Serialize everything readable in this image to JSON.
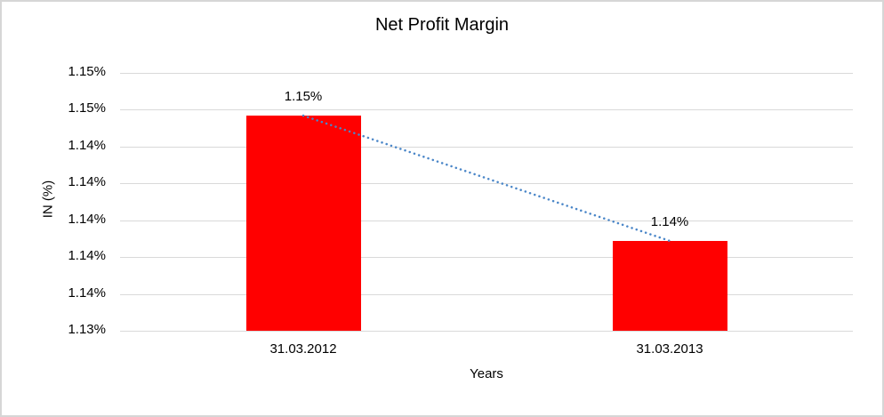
{
  "window": {
    "background": "#FFFFFF",
    "border_color": "#D6D6D6"
  },
  "chart_data": {
    "type": "bar",
    "title": "Net Profit Margin",
    "xlabel": "Years",
    "ylabel": "IN (%)",
    "categories": [
      "31.03.2012",
      "31.03.2013"
    ],
    "series": [
      {
        "name": "Net Profit Margin",
        "values_displayed": [
          "1.15%",
          "1.14%"
        ],
        "values_estimated": [
          1.1471,
          1.1386
        ]
      }
    ],
    "data_labels": [
      "1.15%",
      "1.14%"
    ],
    "y_tick_labels": [
      "1.15%",
      "1.15%",
      "1.14%",
      "1.14%",
      "1.14%",
      "1.14%",
      "1.14%",
      "1.13%"
    ],
    "y_axis_implied_range": [
      1.1325,
      1.15
    ],
    "grid": true,
    "legend": false,
    "colors": {
      "bar": "#FF0000",
      "gridline": "#D9D9D9",
      "trendline": "#4A86C8",
      "text": "#000000"
    },
    "trendline": {
      "style": "dotted",
      "color": "#4A86C8",
      "from": "31.03.2012",
      "to": "31.03.2013"
    }
  }
}
